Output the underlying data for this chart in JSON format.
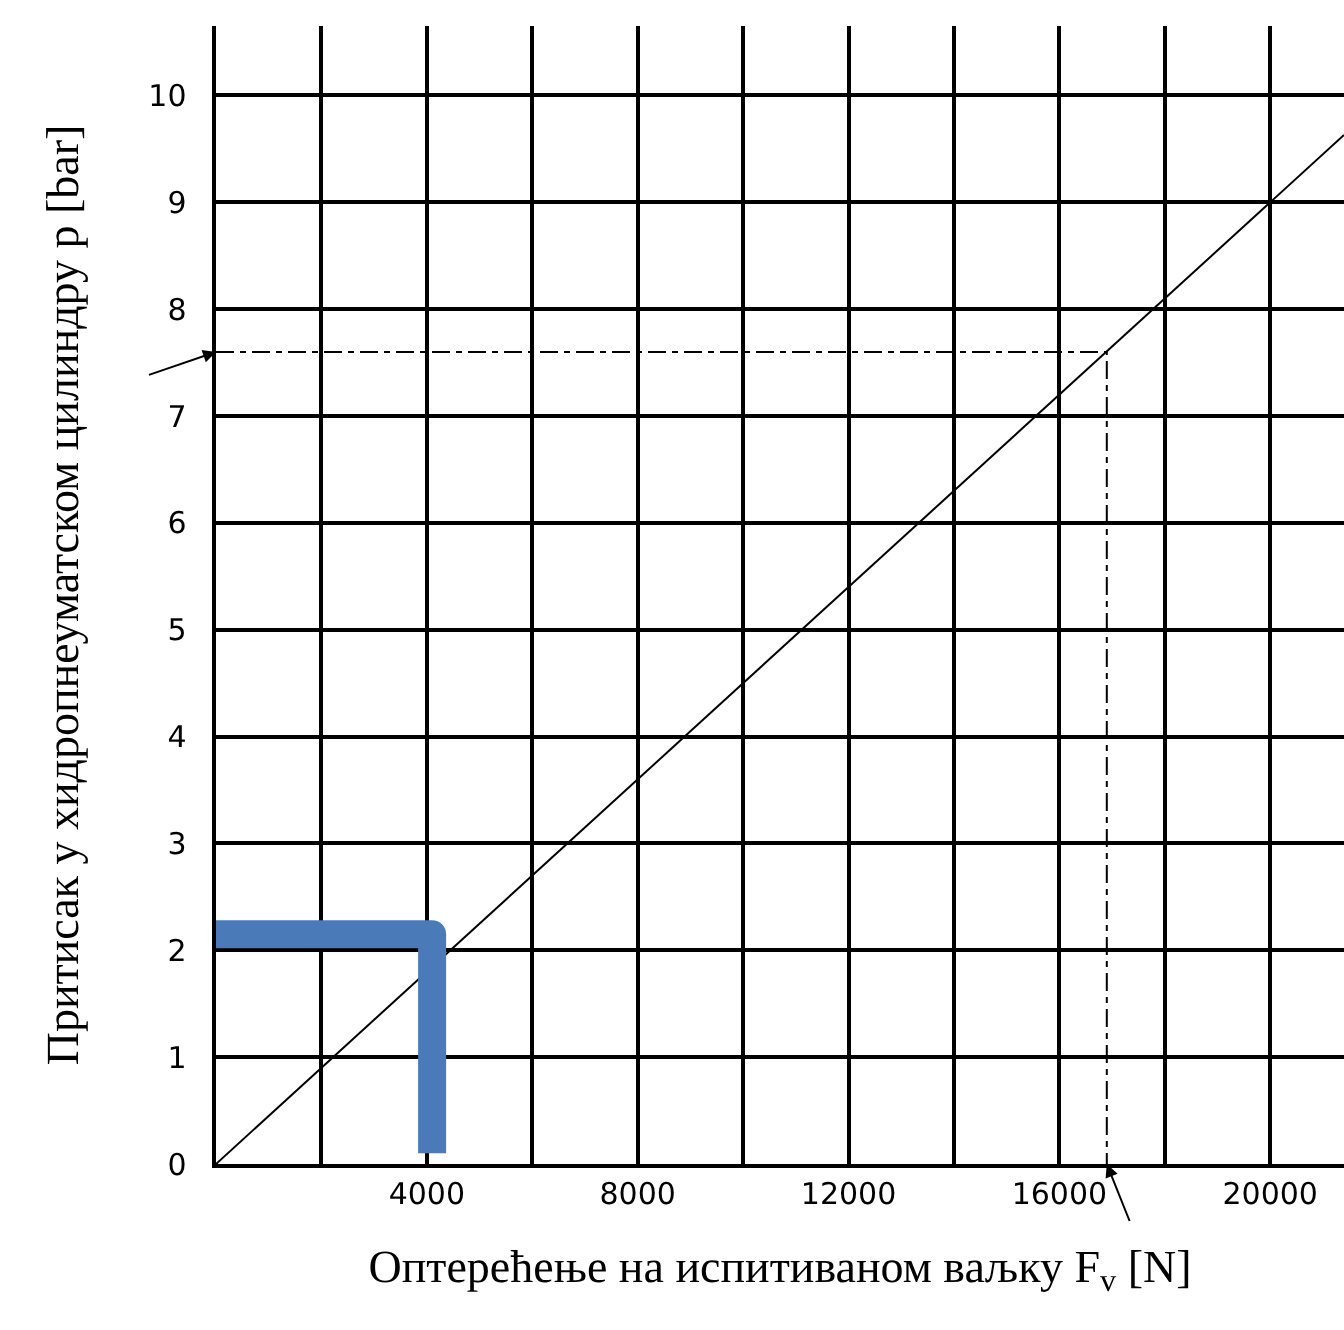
{
  "chart_data": {
    "type": "line",
    "xlabel": "Оптерећење на испитиваном ваљку F$_{v}$ [N]",
    "ylabel": "Притисак у хидропнеуматском цилиндру p [bar]",
    "series": [
      {
        "color": "#000000",
        "x": [
          0,
          21400
        ],
        "values": [
          0,
          9.63
        ]
      },
      {
        "color": "#000000",
        "x": [
          0,
          16900,
          16900
        ],
        "values": [
          7.6,
          7.6,
          0
        ],
        "line_style": "dashed"
      },
      {
        "color": "#4a7ab8",
        "x": [
          0,
          4100,
          4100
        ],
        "values": [
          2.15,
          2.15,
          0.1
        ]
      }
    ],
    "xlim": [
      0,
      21400
    ],
    "ylim": [
      0,
      10.65
    ],
    "xticks": [
      {
        "value": 0,
        "label": null
      },
      {
        "value": 2000,
        "label": null
      },
      4000,
      {
        "value": 6000,
        "label": null
      },
      8000,
      {
        "value": 10000,
        "label": null
      },
      12000,
      {
        "value": 14000,
        "label": null
      },
      16000,
      {
        "value": 18000,
        "label": null
      },
      20000
    ],
    "yticks": [
      0,
      1,
      2,
      3,
      4,
      5,
      6,
      7,
      8,
      9,
      10
    ],
    "grid": true,
    "marker": "none"
  }
}
